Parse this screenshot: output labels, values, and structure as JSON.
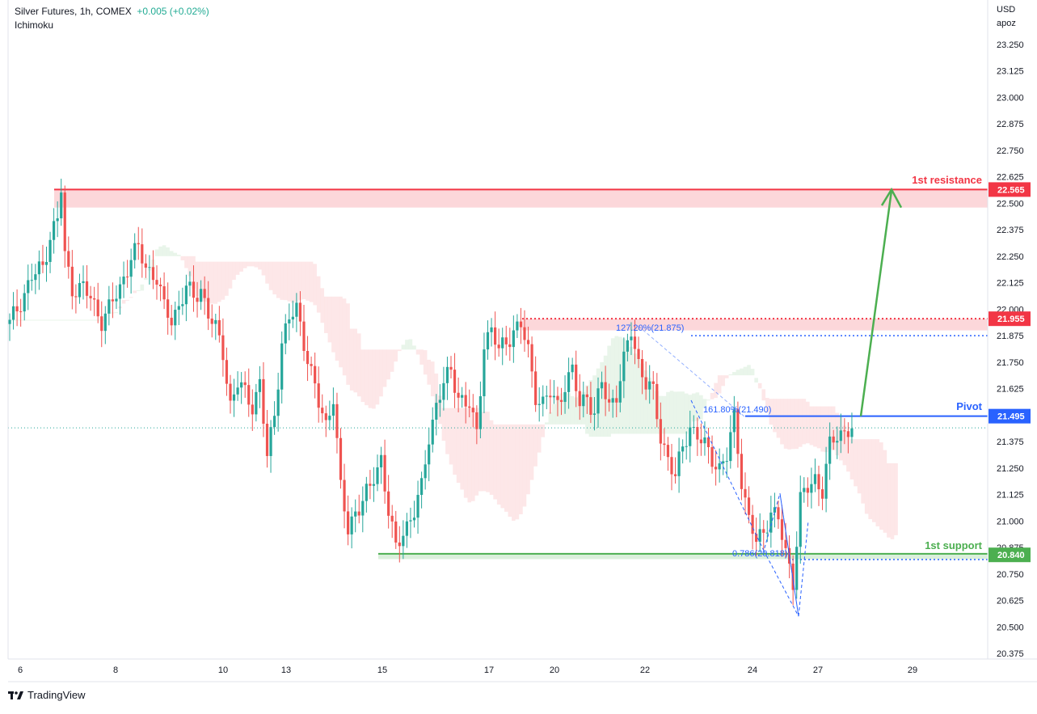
{
  "header": {
    "symbol": "Silver Futures, 1h, COMEX",
    "change": "+0.005 (+0.02%)",
    "indicator": "Ichimoku"
  },
  "axis": {
    "currency": "USD",
    "sub": "apoz"
  },
  "brand": {
    "logo_icon": "tradingview-logo-icon",
    "name": "TradingView"
  },
  "colors": {
    "up": "#26a69a",
    "down": "#ef5350",
    "resistance": "#f23645",
    "support": "#4caf50",
    "pivot": "#2962ff",
    "fib": "#2962ff",
    "arrow": "#4caf50"
  },
  "chart_data": {
    "type": "candlestick",
    "title": "Silver Futures, 1h, COMEX",
    "ylabel": "USD",
    "ylim": [
      20.35,
      23.35
    ],
    "y_ticks": [
      "23.250",
      "23.125",
      "23.000",
      "22.875",
      "22.750",
      "22.625",
      "22.500",
      "22.375",
      "22.250",
      "22.125",
      "22.000",
      "21.875",
      "21.750",
      "21.625",
      "21.500",
      "21.375",
      "21.250",
      "21.125",
      "21.000",
      "20.875",
      "20.750",
      "20.625",
      "20.500",
      "20.375"
    ],
    "x_ticks": [
      "6",
      "8",
      "10",
      "13",
      "15",
      "17",
      "20",
      "22",
      "24",
      "27",
      "29"
    ],
    "last_price": 21.44,
    "price_path": [
      [
        0,
        21.93
      ],
      [
        6,
        22.15
      ],
      [
        9,
        22.2
      ],
      [
        11,
        22.35
      ],
      [
        13,
        22.42
      ],
      [
        14,
        22.565
      ],
      [
        15,
        22.25
      ],
      [
        17,
        22.1
      ],
      [
        20,
        22.1
      ],
      [
        22,
        22.05
      ],
      [
        25,
        21.95
      ],
      [
        27,
        22.0
      ],
      [
        30,
        22.1
      ],
      [
        33,
        22.25
      ],
      [
        35,
        22.28
      ],
      [
        37,
        22.2
      ],
      [
        40,
        22.15
      ],
      [
        42,
        22.0
      ],
      [
        44,
        21.95
      ],
      [
        46,
        22.02
      ],
      [
        48,
        22.1
      ],
      [
        50,
        22.05
      ],
      [
        52,
        22.1
      ],
      [
        54,
        21.98
      ],
      [
        56,
        21.9
      ],
      [
        58,
        21.8
      ],
      [
        60,
        21.55
      ],
      [
        62,
        21.65
      ],
      [
        64,
        21.6
      ],
      [
        66,
        21.55
      ],
      [
        68,
        21.65
      ],
      [
        70,
        21.3
      ],
      [
        72,
        21.5
      ],
      [
        74,
        21.85
      ],
      [
        76,
        21.95
      ],
      [
        78,
        22.0
      ],
      [
        80,
        21.85
      ],
      [
        82,
        21.7
      ],
      [
        84,
        21.55
      ],
      [
        86,
        21.45
      ],
      [
        88,
        21.6
      ],
      [
        90,
        21.15
      ],
      [
        92,
        20.95
      ],
      [
        94,
        21.05
      ],
      [
        96,
        21.1
      ],
      [
        98,
        21.15
      ],
      [
        100,
        21.25
      ],
      [
        101,
        21.3
      ],
      [
        103,
        21.05
      ],
      [
        105,
        20.86
      ],
      [
        107,
        20.95
      ],
      [
        110,
        21.05
      ],
      [
        112,
        21.15
      ],
      [
        114,
        21.4
      ],
      [
        116,
        21.55
      ],
      [
        118,
        21.65
      ],
      [
        120,
        21.7
      ],
      [
        122,
        21.6
      ],
      [
        124,
        21.55
      ],
      [
        125,
        21.55
      ],
      [
        127,
        21.4
      ],
      [
        129,
        21.85
      ],
      [
        131,
        21.9
      ],
      [
        133,
        21.8
      ],
      [
        135,
        21.85
      ],
      [
        137,
        21.9
      ],
      [
        139,
        21.92
      ],
      [
        141,
        21.8
      ],
      [
        143,
        21.6
      ],
      [
        145,
        21.55
      ],
      [
        147,
        21.6
      ],
      [
        149,
        21.55
      ],
      [
        151,
        21.65
      ],
      [
        153,
        21.7
      ],
      [
        155,
        21.55
      ],
      [
        157,
        21.6
      ],
      [
        159,
        21.5
      ],
      [
        161,
        21.65
      ],
      [
        163,
        21.55
      ],
      [
        165,
        21.6
      ],
      [
        167,
        21.75
      ],
      [
        169,
        21.9
      ],
      [
        171,
        21.75
      ],
      [
        173,
        21.65
      ],
      [
        175,
        21.6
      ],
      [
        177,
        21.4
      ],
      [
        179,
        21.3
      ],
      [
        181,
        21.2
      ],
      [
        183,
        21.35
      ],
      [
        185,
        21.45
      ],
      [
        187,
        21.4
      ],
      [
        189,
        21.35
      ],
      [
        191,
        21.3
      ],
      [
        193,
        21.25
      ],
      [
        195,
        21.3
      ],
      [
        197,
        21.49
      ],
      [
        199,
        21.2
      ],
      [
        201,
        21.0
      ],
      [
        203,
        20.9
      ],
      [
        205,
        20.95
      ],
      [
        207,
        21.05
      ],
      [
        209,
        21.0
      ],
      [
        211,
        20.85
      ],
      [
        213,
        20.72
      ],
      [
        215,
        21.1
      ],
      [
        217,
        21.15
      ],
      [
        219,
        21.2
      ],
      [
        221,
        21.15
      ],
      [
        223,
        21.35
      ],
      [
        225,
        21.4
      ],
      [
        228,
        21.44
      ]
    ],
    "series": [
      {
        "name": "1st resistance",
        "type": "zone",
        "from": 22.48,
        "to": 22.565,
        "value": 22.565,
        "label": "22.565"
      },
      {
        "name": "",
        "type": "zone",
        "from": 21.92,
        "to": 21.955,
        "value": 21.955,
        "label": "21.955"
      },
      {
        "name": "Pivot",
        "type": "hline",
        "value": 21.495,
        "label": "21.495"
      },
      {
        "name": "1st support",
        "type": "zone",
        "from": 20.82,
        "to": 20.845,
        "value": 20.84,
        "label": "20.840"
      }
    ],
    "annotations": [
      {
        "text": "127.20%(21.875)",
        "value": 21.875
      },
      {
        "text": "161.80%(21.490)",
        "value": 21.49
      },
      {
        "text": "0.786(20.818)",
        "value": 20.818
      }
    ],
    "labels": {
      "resistance": "1st resistance",
      "pivot": "Pivot",
      "support": "1st support"
    },
    "grid": false,
    "legend": "none"
  }
}
